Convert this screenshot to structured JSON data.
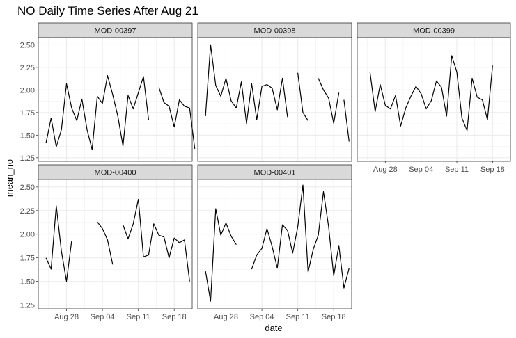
{
  "chart_data": {
    "type": "line",
    "title": "NO Daily Time Series After Aug 21",
    "xlabel": "date",
    "ylabel": "mean_no",
    "x_axis": {
      "min_day": 22.5,
      "max_day": 52.5,
      "ticks": [
        {
          "day": 28,
          "label": "Aug 28"
        },
        {
          "day": 35,
          "label": "Sep 04"
        },
        {
          "day": 42,
          "label": "Sep 11"
        },
        {
          "day": 49,
          "label": "Sep 18"
        }
      ]
    },
    "y_axis": {
      "min": 1.21,
      "max": 2.58,
      "ticks": [
        1.25,
        1.5,
        1.75,
        2.0,
        2.25,
        2.5
      ],
      "tick_labels": [
        "1.25",
        "1.50",
        "1.75",
        "2.00",
        "2.25",
        "2.50"
      ]
    },
    "grid": true,
    "facets": [
      {
        "name": "MOD-00397",
        "segments": [
          [
            [
              24,
              1.41
            ],
            [
              25,
              1.69
            ],
            [
              26,
              1.37
            ],
            [
              27,
              1.56
            ],
            [
              28,
              2.07
            ],
            [
              29,
              1.8
            ],
            [
              30,
              1.66
            ],
            [
              31,
              1.9
            ],
            [
              32,
              1.56
            ],
            [
              33,
              1.34
            ],
            [
              34,
              1.93
            ],
            [
              35,
              1.85
            ],
            [
              36,
              2.16
            ],
            [
              37,
              1.95
            ],
            [
              38,
              1.71
            ],
            [
              39,
              1.38
            ],
            [
              40,
              1.94
            ],
            [
              41,
              1.79
            ],
            [
              42,
              1.97
            ],
            [
              43,
              2.15
            ],
            [
              44,
              1.67
            ]
          ],
          [
            [
              46,
              2.03
            ],
            [
              47,
              1.86
            ],
            [
              48,
              1.82
            ],
            [
              49,
              1.59
            ],
            [
              50,
              1.89
            ],
            [
              51,
              1.82
            ],
            [
              52,
              1.8
            ],
            [
              53,
              1.35
            ]
          ]
        ]
      },
      {
        "name": "MOD-00398",
        "segments": [
          [
            [
              24,
              1.71
            ],
            [
              25,
              2.5
            ],
            [
              26,
              2.05
            ],
            [
              27,
              1.93
            ],
            [
              28,
              2.13
            ],
            [
              29,
              1.88
            ],
            [
              30,
              1.8
            ],
            [
              31,
              2.09
            ],
            [
              32,
              1.63
            ],
            [
              33,
              2.07
            ],
            [
              34,
              1.67
            ],
            [
              35,
              2.04
            ],
            [
              36,
              2.06
            ],
            [
              37,
              2.02
            ],
            [
              38,
              1.78
            ],
            [
              39,
              2.13
            ],
            [
              40,
              1.7
            ]
          ],
          [
            [
              42,
              2.19
            ],
            [
              43,
              1.75
            ],
            [
              44,
              1.66
            ]
          ],
          [
            [
              46,
              2.13
            ],
            [
              47,
              2.0
            ],
            [
              48,
              1.91
            ],
            [
              49,
              1.63
            ],
            [
              50,
              1.97
            ]
          ],
          [
            [
              51,
              1.89
            ],
            [
              52,
              1.43
            ]
          ]
        ]
      },
      {
        "name": "MOD-00399",
        "segments": [
          [
            [
              25,
              2.2
            ],
            [
              26,
              1.76
            ],
            [
              27,
              2.06
            ],
            [
              28,
              1.83
            ],
            [
              29,
              1.79
            ],
            [
              30,
              1.94
            ],
            [
              31,
              1.6
            ],
            [
              32,
              1.8
            ],
            [
              33,
              1.93
            ],
            [
              34,
              2.04
            ],
            [
              35,
              1.96
            ],
            [
              36,
              1.79
            ],
            [
              37,
              1.88
            ],
            [
              38,
              2.1
            ],
            [
              39,
              2.03
            ],
            [
              40,
              1.71
            ],
            [
              41,
              2.38
            ],
            [
              42,
              2.2
            ],
            [
              43,
              1.69
            ],
            [
              44,
              1.55
            ],
            [
              45,
              2.13
            ],
            [
              46,
              1.92
            ],
            [
              47,
              1.89
            ],
            [
              48,
              1.67
            ],
            [
              49,
              2.27
            ]
          ]
        ]
      },
      {
        "name": "MOD-00400",
        "segments": [
          [
            [
              24,
              1.75
            ],
            [
              25,
              1.63
            ],
            [
              26,
              2.3
            ],
            [
              27,
              1.82
            ],
            [
              28,
              1.5
            ],
            [
              29,
              1.93
            ]
          ],
          [
            [
              34,
              2.13
            ],
            [
              35,
              2.06
            ],
            [
              36,
              1.94
            ],
            [
              37,
              1.68
            ]
          ],
          [
            [
              39,
              2.1
            ],
            [
              40,
              1.95
            ],
            [
              41,
              2.11
            ],
            [
              42,
              2.37
            ],
            [
              43,
              1.76
            ],
            [
              44,
              1.78
            ],
            [
              45,
              2.11
            ],
            [
              46,
              1.99
            ],
            [
              47,
              1.97
            ],
            [
              48,
              1.75
            ],
            [
              49,
              1.96
            ],
            [
              50,
              1.91
            ],
            [
              51,
              1.94
            ],
            [
              52,
              1.5
            ]
          ]
        ]
      },
      {
        "name": "MOD-00401",
        "segments": [
          [
            [
              24,
              1.61
            ],
            [
              25,
              1.29
            ],
            [
              26,
              2.27
            ],
            [
              27,
              1.99
            ],
            [
              28,
              2.12
            ],
            [
              29,
              1.98
            ],
            [
              30,
              1.89
            ]
          ],
          [
            [
              33,
              1.63
            ],
            [
              34,
              1.78
            ],
            [
              35,
              1.85
            ],
            [
              36,
              2.06
            ],
            [
              37,
              1.87
            ],
            [
              38,
              1.64
            ],
            [
              39,
              2.1
            ],
            [
              40,
              2.04
            ],
            [
              41,
              1.8
            ],
            [
              42,
              2.08
            ],
            [
              43,
              2.52
            ],
            [
              44,
              1.6
            ],
            [
              45,
              1.84
            ],
            [
              46,
              1.99
            ],
            [
              47,
              2.45
            ],
            [
              48,
              2.08
            ],
            [
              49,
              1.56
            ],
            [
              50,
              1.88
            ],
            [
              51,
              1.43
            ],
            [
              52,
              1.64
            ]
          ]
        ]
      }
    ]
  }
}
